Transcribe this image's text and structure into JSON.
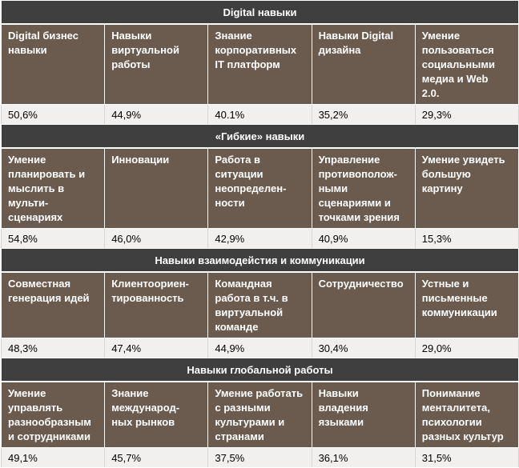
{
  "sections": [
    {
      "title": "Digital навыки",
      "labels": [
        "Digital бизнес\nнавыки",
        "Навыки\nвиртуальной\nработы",
        "Знание\nкорпоративных\nIT платформ",
        "Навыки Digital\nдизайна",
        "Умение\nпользоваться\nсоциальными\nмедиа и Web\n2.0."
      ],
      "values": [
        "50,6%",
        "44,9%",
        "40.1%",
        "35,2%",
        "29,3%"
      ]
    },
    {
      "title": "«Гибкие» навыки",
      "labels": [
        "Умение\nпланировать и\nмыслить в\nмульти-\nсценариях",
        "Инновации",
        "Работа в\nситуации\nнеопределен-\nности",
        "Управление\nпротивополож-\nными\nсценариями и\nточками зрения",
        "Умение увидеть\nбольшую\nкартину"
      ],
      "values": [
        "54,8%",
        "46,0%",
        "42,9%",
        "40,9%",
        "15,3%"
      ]
    },
    {
      "title": "Навыки взаимодейстия и коммуникации",
      "labels": [
        "Совместная\nгенерация идей",
        "Клиентоориен-\nтированность",
        "Командная\nработа в т.ч. в\nвиртуальной\nкоманде",
        "Сотрудничество",
        "Устные и\nписьменные\nкоммуникации"
      ],
      "values": [
        "48,3%",
        "47,4%",
        "44,9%",
        "30,4%",
        "29,0%"
      ]
    },
    {
      "title": "Навыки глобальной работы",
      "labels": [
        "Умение\nуправлять\nразнообразным\nи сотрудниками",
        "Знание\nмеждународ-\nных рынков",
        "Умение работать\nс разными\nкультурами и\nстранами",
        "Навыки\nвладения\nязыками",
        "Понимание\nменталитета,\nпсихологии\nразных культур"
      ],
      "values": [
        "49,1%",
        "45,7%",
        "37,5%",
        "36,1%",
        "31,5%"
      ]
    }
  ]
}
